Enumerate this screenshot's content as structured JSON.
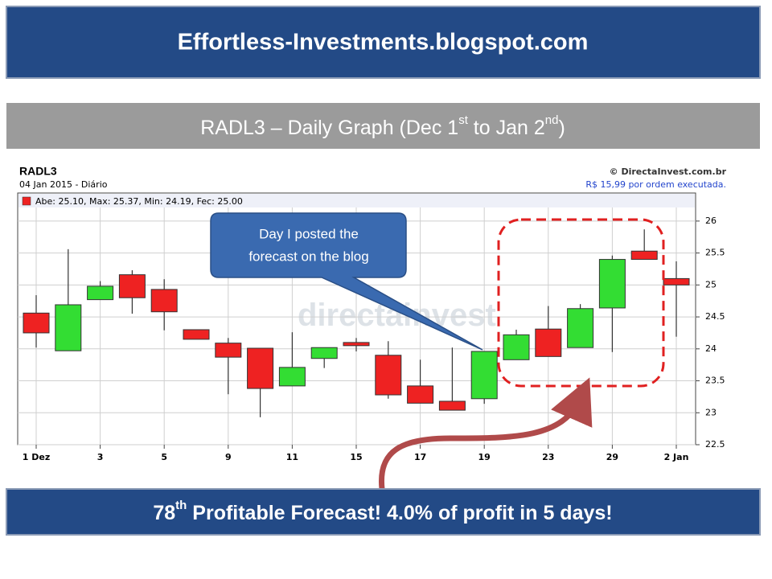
{
  "header": {
    "title": "Effortless-Investments.blogspot.com"
  },
  "subtitle": {
    "parts": [
      "RADL3 – Daily Graph (Dec 1",
      "st",
      " to Jan 2",
      "nd",
      ")"
    ]
  },
  "chart_data": {
    "type": "candlestick",
    "title": "RADL3",
    "subtitle": "04 Jan 2015 - Diário",
    "source": "© DirectaInvest.com.br",
    "source_note": "R$ 15,99 por ordem executada.",
    "legend_text": "Abe: 25.10, Max: 25.37, Min: 24.19, Fec: 25.00",
    "watermark": "directainvest",
    "up_color": "#33dd33",
    "down_color": "#ee2222",
    "grid": true,
    "categories": [
      "1 Dez",
      null,
      "3",
      null,
      "5",
      null,
      "9",
      null,
      "11",
      null,
      "15",
      null,
      "17",
      null,
      "19",
      null,
      "23",
      null,
      "29",
      null,
      "2 Jan"
    ],
    "open": [
      24.56,
      23.97,
      24.77,
      25.16,
      24.93,
      24.3,
      24.09,
      24.01,
      23.42,
      23.85,
      24.1,
      23.9,
      23.42,
      23.18,
      23.22,
      23.83,
      24.31,
      24.02,
      24.64,
      25.53,
      25.1
    ],
    "high": [
      24.84,
      25.56,
      25.06,
      25.23,
      25.09,
      24.3,
      24.17,
      24.01,
      24.26,
      24.02,
      24.17,
      24.12,
      23.83,
      24.02,
      23.96,
      24.3,
      24.67,
      24.7,
      25.46,
      25.87,
      25.37
    ],
    "low": [
      24.02,
      23.97,
      24.77,
      24.55,
      24.29,
      24.15,
      23.29,
      22.93,
      23.42,
      23.7,
      23.96,
      23.22,
      23.15,
      23.04,
      23.14,
      23.83,
      23.88,
      24.02,
      23.95,
      25.4,
      24.19
    ],
    "close": [
      24.25,
      24.69,
      24.98,
      24.8,
      24.58,
      24.15,
      23.87,
      23.38,
      23.71,
      24.02,
      24.05,
      23.28,
      23.15,
      23.04,
      23.96,
      24.22,
      23.88,
      24.63,
      25.4,
      25.4,
      25.0
    ],
    "ylim": [
      22.5,
      26.2
    ],
    "yticks": [
      22.5,
      23,
      23.5,
      24,
      24.5,
      25,
      25.5,
      26
    ],
    "annotation": {
      "lines": [
        "Day I posted the",
        "forecast on the blog"
      ]
    }
  },
  "footer": {
    "parts": [
      "78",
      "th",
      " Profitable Forecast! 4.0% of profit in 5 days!"
    ]
  }
}
